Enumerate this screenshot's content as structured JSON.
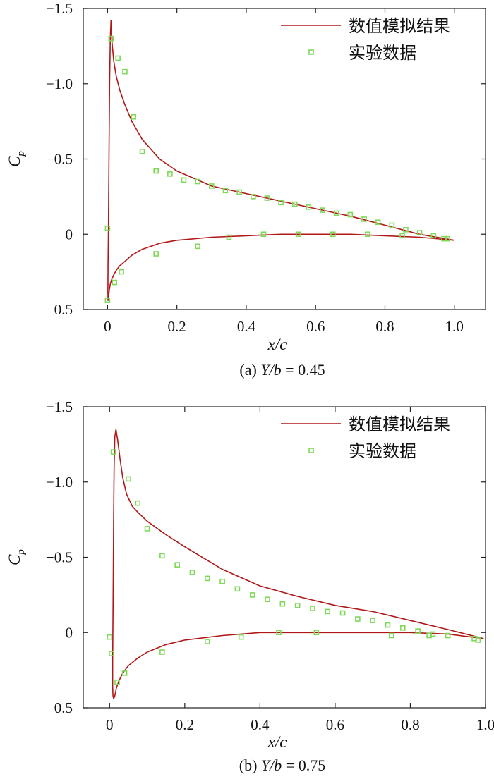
{
  "chart_data": [
    {
      "type": "line",
      "subplot_label": "(a)",
      "caption_var": "Y/b",
      "caption_eq": "= 0.45",
      "xlabel": "x/c",
      "ylabel": "C",
      "ylabel_sub": "p",
      "xlim": [
        -0.07,
        1.09
      ],
      "ylim": [
        -1.5,
        0.5
      ],
      "y_inverted": true,
      "xticks": [
        "0",
        "0.2",
        "0.4",
        "0.6",
        "0.8",
        "1.0"
      ],
      "yticks": [
        "-1.5",
        "-1.0",
        "-0.5",
        "0",
        "0.5"
      ],
      "legend": {
        "position": "top-right",
        "line_label": "数值模拟结果",
        "marker_label": "实验数据"
      },
      "series": [
        {
          "name": "数值模拟结果",
          "kind": "line",
          "color": "#b01818",
          "x": [
            1.0,
            0.9,
            0.8,
            0.7,
            0.6,
            0.5,
            0.4,
            0.3,
            0.2,
            0.15,
            0.1,
            0.07,
            0.05,
            0.035,
            0.025,
            0.018,
            0.013,
            0.01,
            0.008,
            0.006,
            0.004,
            0.0025,
            0.0015,
            0.001,
            0.0015,
            0.003,
            0.005,
            0.008,
            0.012,
            0.018,
            0.025,
            0.035,
            0.05,
            0.07,
            0.1,
            0.15,
            0.2,
            0.3,
            0.4,
            0.5,
            0.6,
            0.7,
            0.8,
            0.9,
            1.0
          ],
          "y": [
            0.04,
            0.0,
            -0.06,
            -0.12,
            -0.17,
            -0.22,
            -0.27,
            -0.32,
            -0.42,
            -0.5,
            -0.63,
            -0.75,
            -0.86,
            -0.96,
            -1.05,
            -1.15,
            -1.27,
            -1.42,
            -1.3,
            -1.0,
            -0.5,
            0.0,
            0.2,
            0.38,
            0.44,
            0.41,
            0.37,
            0.33,
            0.3,
            0.27,
            0.24,
            0.21,
            0.18,
            0.14,
            0.1,
            0.06,
            0.04,
            0.02,
            0.01,
            0.0,
            0.0,
            0.0,
            0.01,
            0.02,
            0.04
          ]
        },
        {
          "name": "实验数据",
          "kind": "marker",
          "color": "#7ed957",
          "x": [
            0.0,
            0.01,
            0.03,
            0.05,
            0.075,
            0.1,
            0.14,
            0.18,
            0.22,
            0.26,
            0.3,
            0.34,
            0.38,
            0.42,
            0.46,
            0.5,
            0.54,
            0.58,
            0.62,
            0.66,
            0.7,
            0.74,
            0.78,
            0.82,
            0.86,
            0.9,
            0.94,
            0.97,
            0.98,
            0.0,
            0.02,
            0.04,
            0.14,
            0.26,
            0.35,
            0.45,
            0.55,
            0.65,
            0.75,
            0.85
          ],
          "y": [
            -0.04,
            -1.3,
            -1.17,
            -1.08,
            -0.78,
            -0.55,
            -0.42,
            -0.4,
            -0.36,
            -0.35,
            -0.32,
            -0.29,
            -0.28,
            -0.25,
            -0.24,
            -0.21,
            -0.2,
            -0.18,
            -0.16,
            -0.14,
            -0.13,
            -0.1,
            -0.08,
            -0.06,
            -0.03,
            -0.01,
            0.01,
            0.03,
            0.03,
            0.44,
            0.32,
            0.25,
            0.13,
            0.08,
            0.02,
            0.0,
            0.0,
            0.0,
            0.0,
            0.01
          ]
        }
      ]
    },
    {
      "type": "line",
      "subplot_label": "(b)",
      "caption_var": "Y/b",
      "caption_eq": "= 0.75",
      "xlabel": "x/c",
      "ylabel": "C",
      "ylabel_sub": "p",
      "xlim": [
        -0.07,
        1.0
      ],
      "ylim": [
        -1.5,
        0.5
      ],
      "y_inverted": true,
      "xticks": [
        "0",
        "0.2",
        "0.4",
        "0.6",
        "0.8",
        "1.0"
      ],
      "yticks": [
        "-1.5",
        "-1.0",
        "-0.5",
        "0",
        "0.5"
      ],
      "legend": {
        "position": "top-right",
        "line_label": "数值模拟结果",
        "marker_label": "实验数据"
      },
      "series": [
        {
          "name": "数值模拟结果",
          "kind": "line",
          "color": "#b01818",
          "x": [
            0.995,
            0.9,
            0.8,
            0.7,
            0.6,
            0.5,
            0.4,
            0.3,
            0.2,
            0.15,
            0.1,
            0.075,
            0.06,
            0.045,
            0.035,
            0.028,
            0.022,
            0.017,
            0.014,
            0.012,
            0.011,
            0.01,
            0.009,
            0.008,
            0.008,
            0.009,
            0.011,
            0.014,
            0.018,
            0.025,
            0.035,
            0.05,
            0.075,
            0.1,
            0.15,
            0.2,
            0.3,
            0.4,
            0.5,
            0.6,
            0.7,
            0.8,
            0.9,
            0.995
          ],
          "y": [
            0.04,
            -0.02,
            -0.08,
            -0.14,
            -0.18,
            -0.24,
            -0.31,
            -0.42,
            -0.57,
            -0.65,
            -0.74,
            -0.8,
            -0.84,
            -0.92,
            -1.03,
            -1.15,
            -1.27,
            -1.35,
            -1.3,
            -1.1,
            -0.8,
            -0.45,
            -0.1,
            0.2,
            0.35,
            0.42,
            0.44,
            0.42,
            0.37,
            0.32,
            0.27,
            0.22,
            0.17,
            0.13,
            0.08,
            0.05,
            0.02,
            0.0,
            0.0,
            0.0,
            0.0,
            0.0,
            0.01,
            0.04
          ]
        },
        {
          "name": "实验数据",
          "kind": "marker",
          "color": "#7ed957",
          "x": [
            0.0,
            0.01,
            0.05,
            0.075,
            0.1,
            0.14,
            0.18,
            0.22,
            0.26,
            0.3,
            0.34,
            0.38,
            0.42,
            0.46,
            0.5,
            0.54,
            0.58,
            0.62,
            0.66,
            0.7,
            0.74,
            0.78,
            0.82,
            0.86,
            0.9,
            0.97,
            0.98,
            0.005,
            0.02,
            0.04,
            0.14,
            0.26,
            0.35,
            0.45,
            0.55,
            0.75,
            0.85
          ],
          "y": [
            0.03,
            -1.2,
            -1.02,
            -0.86,
            -0.69,
            -0.51,
            -0.45,
            -0.4,
            -0.36,
            -0.34,
            -0.29,
            -0.25,
            -0.22,
            -0.19,
            -0.18,
            -0.16,
            -0.14,
            -0.13,
            -0.09,
            -0.08,
            -0.05,
            -0.03,
            -0.01,
            0.01,
            0.02,
            0.04,
            0.05,
            0.14,
            0.33,
            0.27,
            0.13,
            0.06,
            0.03,
            0.0,
            0.0,
            0.02,
            0.02
          ]
        }
      ]
    }
  ]
}
